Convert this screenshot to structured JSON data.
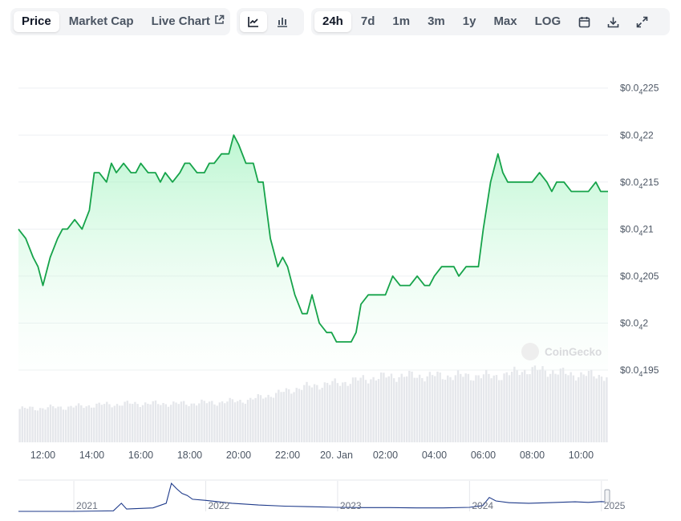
{
  "toolbar": {
    "tabs": [
      {
        "label": "Price",
        "active": true
      },
      {
        "label": "Market Cap",
        "active": false
      },
      {
        "label": "Live Chart",
        "active": false,
        "icon": "external-link-icon"
      }
    ],
    "chart_types": [
      {
        "icon": "line-chart-icon",
        "active": true
      },
      {
        "icon": "candlestick-icon",
        "active": false
      }
    ],
    "ranges": [
      {
        "label": "24h",
        "active": true
      },
      {
        "label": "7d",
        "active": false
      },
      {
        "label": "1m",
        "active": false
      },
      {
        "label": "3m",
        "active": false
      },
      {
        "label": "1y",
        "active": false
      },
      {
        "label": "Max",
        "active": false
      },
      {
        "label": "LOG",
        "active": false
      }
    ],
    "tool_icons": [
      "calendar-icon",
      "download-icon",
      "fullscreen-icon"
    ]
  },
  "watermark": "CoinGecko",
  "colors": {
    "line": "#16a34a",
    "area_top": "#bbf7d0",
    "volume": "#e5e7eb",
    "overview_line": "#1e3a8a",
    "grid": "#eef0f3",
    "axis_text": "#4b5563"
  },
  "chart_data": {
    "type": "line",
    "y_tick_labels": [
      {
        "prefix": "$0.0",
        "sub": "4",
        "suffix": "225",
        "value": 2.25e-05
      },
      {
        "prefix": "$0.0",
        "sub": "4",
        "suffix": "22",
        "value": 2.2e-05
      },
      {
        "prefix": "$0.0",
        "sub": "4",
        "suffix": "215",
        "value": 2.15e-05
      },
      {
        "prefix": "$0.0",
        "sub": "4",
        "suffix": "21",
        "value": 2.1e-05
      },
      {
        "prefix": "$0.0",
        "sub": "4",
        "suffix": "205",
        "value": 2.05e-05
      },
      {
        "prefix": "$0.0",
        "sub": "4",
        "suffix": "2",
        "value": 2e-05
      },
      {
        "prefix": "$0.0",
        "sub": "4",
        "suffix": "195",
        "value": 1.95e-05
      }
    ],
    "ylim": [
      1.95e-05,
      2.26e-05
    ],
    "xlim": [
      11.0,
      35.1
    ],
    "x_ticks": [
      {
        "label": "12:00",
        "x": 12
      },
      {
        "label": "14:00",
        "x": 14
      },
      {
        "label": "16:00",
        "x": 16
      },
      {
        "label": "18:00",
        "x": 18
      },
      {
        "label": "20:00",
        "x": 20
      },
      {
        "label": "22:00",
        "x": 22
      },
      {
        "label": "20. Jan",
        "x": 24
      },
      {
        "label": "02:00",
        "x": 26
      },
      {
        "label": "04:00",
        "x": 28
      },
      {
        "label": "06:00",
        "x": 30
      },
      {
        "label": "08:00",
        "x": 32
      },
      {
        "label": "10:00",
        "x": 34
      }
    ],
    "series": [
      {
        "x": [
          11.0,
          11.3,
          11.6,
          11.8,
          12.0,
          12.3,
          12.6,
          12.8,
          13.0,
          13.3,
          13.6,
          13.9,
          14.1,
          14.3,
          14.6,
          14.8,
          15.0,
          15.3,
          15.6,
          15.8,
          16.0,
          16.3,
          16.6,
          16.8,
          17.0,
          17.3,
          17.6,
          17.8,
          18.0,
          18.3,
          18.6,
          18.8,
          19.0,
          19.3,
          19.6,
          19.8,
          20.0,
          20.3,
          20.6,
          20.8,
          21.0,
          21.3,
          21.6,
          21.8,
          22.0,
          22.3,
          22.6,
          22.8,
          23.0,
          23.3,
          23.6,
          23.8,
          24.0,
          24.3,
          24.6,
          24.8,
          25.0,
          25.3,
          25.6,
          25.8,
          26.0,
          26.3,
          26.6,
          26.8,
          27.0,
          27.3,
          27.6,
          27.8,
          28.0,
          28.3,
          28.6,
          28.8,
          29.0,
          29.3,
          29.6,
          29.8,
          30.0,
          30.3,
          30.6,
          30.8,
          31.0,
          31.3,
          31.6,
          31.8,
          32.0,
          32.3,
          32.6,
          32.8,
          33.0,
          33.3,
          33.6,
          33.8,
          34.0,
          34.3,
          34.6,
          34.8,
          35.1
        ],
        "y": [
          2.1e-05,
          2.09e-05,
          2.07e-05,
          2.06e-05,
          2.04e-05,
          2.07e-05,
          2.09e-05,
          2.1e-05,
          2.1e-05,
          2.11e-05,
          2.1e-05,
          2.12e-05,
          2.16e-05,
          2.16e-05,
          2.15e-05,
          2.17e-05,
          2.16e-05,
          2.17e-05,
          2.16e-05,
          2.16e-05,
          2.17e-05,
          2.16e-05,
          2.16e-05,
          2.15e-05,
          2.16e-05,
          2.15e-05,
          2.16e-05,
          2.17e-05,
          2.17e-05,
          2.16e-05,
          2.16e-05,
          2.17e-05,
          2.17e-05,
          2.18e-05,
          2.18e-05,
          2.2e-05,
          2.19e-05,
          2.17e-05,
          2.17e-05,
          2.15e-05,
          2.15e-05,
          2.09e-05,
          2.06e-05,
          2.07e-05,
          2.06e-05,
          2.03e-05,
          2.01e-05,
          2.01e-05,
          2.03e-05,
          2e-05,
          1.99e-05,
          1.99e-05,
          1.98e-05,
          1.98e-05,
          1.98e-05,
          1.99e-05,
          2.02e-05,
          2.03e-05,
          2.03e-05,
          2.03e-05,
          2.03e-05,
          2.05e-05,
          2.04e-05,
          2.04e-05,
          2.04e-05,
          2.05e-05,
          2.04e-05,
          2.04e-05,
          2.05e-05,
          2.06e-05,
          2.06e-05,
          2.06e-05,
          2.05e-05,
          2.06e-05,
          2.06e-05,
          2.06e-05,
          2.1e-05,
          2.15e-05,
          2.18e-05,
          2.16e-05,
          2.15e-05,
          2.15e-05,
          2.15e-05,
          2.15e-05,
          2.15e-05,
          2.16e-05,
          2.15e-05,
          2.14e-05,
          2.15e-05,
          2.15e-05,
          2.14e-05,
          2.14e-05,
          2.14e-05,
          2.14e-05,
          2.15e-05,
          2.14e-05,
          2.14e-05
        ]
      }
    ],
    "volume": {
      "x": [
        11.0,
        11.5,
        12.0,
        12.5,
        13.0,
        13.5,
        14.0,
        14.5,
        15.0,
        15.5,
        16.0,
        16.5,
        17.0,
        17.5,
        18.0,
        18.5,
        19.0,
        19.5,
        20.0,
        20.5,
        21.0,
        21.5,
        22.0,
        22.5,
        23.0,
        23.5,
        24.0,
        24.5,
        25.0,
        25.5,
        26.0,
        26.5,
        27.0,
        27.5,
        28.0,
        28.5,
        29.0,
        29.5,
        30.0,
        30.5,
        31.0,
        31.5,
        32.0,
        32.5,
        33.0,
        33.5,
        34.0,
        34.5,
        35.0
      ],
      "values": [
        0.36,
        0.37,
        0.37,
        0.38,
        0.38,
        0.39,
        0.4,
        0.41,
        0.41,
        0.42,
        0.42,
        0.42,
        0.42,
        0.42,
        0.42,
        0.43,
        0.43,
        0.44,
        0.45,
        0.46,
        0.5,
        0.52,
        0.56,
        0.59,
        0.61,
        0.63,
        0.64,
        0.66,
        0.68,
        0.7,
        0.71,
        0.72,
        0.72,
        0.72,
        0.72,
        0.72,
        0.72,
        0.72,
        0.72,
        0.72,
        0.73,
        0.78,
        0.78,
        0.78,
        0.76,
        0.74,
        0.73,
        0.73,
        0.72
      ]
    },
    "overview": {
      "x_ticks": [
        {
          "label": "2021",
          "x": 2021
        },
        {
          "label": "2022",
          "x": 2022
        },
        {
          "label": "2023",
          "x": 2023
        },
        {
          "label": "2024",
          "x": 2024
        },
        {
          "label": "2025",
          "x": 2025
        }
      ],
      "xlim": [
        2020.58,
        2025.05
      ],
      "x": [
        2020.58,
        2021.0,
        2021.3,
        2021.36,
        2021.4,
        2021.6,
        2021.7,
        2021.74,
        2021.78,
        2021.82,
        2021.86,
        2021.9,
        2022.0,
        2022.2,
        2022.4,
        2022.6,
        2022.8,
        2023.0,
        2023.2,
        2023.4,
        2023.6,
        2023.8,
        2024.0,
        2024.1,
        2024.15,
        2024.2,
        2024.3,
        2024.45,
        2024.6,
        2024.8,
        2024.9,
        2025.0,
        2025.05
      ],
      "values": [
        0.0,
        0.0,
        0.02,
        0.28,
        0.08,
        0.12,
        0.28,
        0.97,
        0.78,
        0.62,
        0.55,
        0.42,
        0.38,
        0.28,
        0.22,
        0.18,
        0.16,
        0.14,
        0.13,
        0.13,
        0.12,
        0.12,
        0.14,
        0.2,
        0.48,
        0.36,
        0.3,
        0.28,
        0.3,
        0.33,
        0.31,
        0.34,
        0.32
      ]
    }
  }
}
